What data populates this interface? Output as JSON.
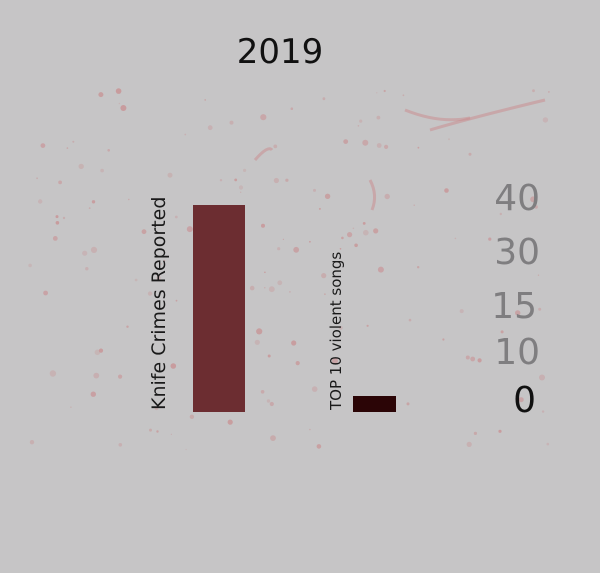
{
  "colors": {
    "background": "#c6c5c6",
    "bar_knife": "#6c2d31",
    "bar_songs": "#2b0506",
    "splatter": "#c98a8c",
    "tick_grey": "#7f7e80",
    "tick_zero": "#111111"
  },
  "chart_data": {
    "type": "bar",
    "title": "2019",
    "categories": [
      "Knife Crimes Reported",
      "TOP 10 violent songs"
    ],
    "values": [
      40,
      3
    ],
    "scale_ticks": [
      40,
      30,
      15,
      10,
      0
    ],
    "xlabel": "",
    "ylabel": "",
    "ylim": [
      0,
      40
    ],
    "grid": false,
    "legend": "none"
  }
}
